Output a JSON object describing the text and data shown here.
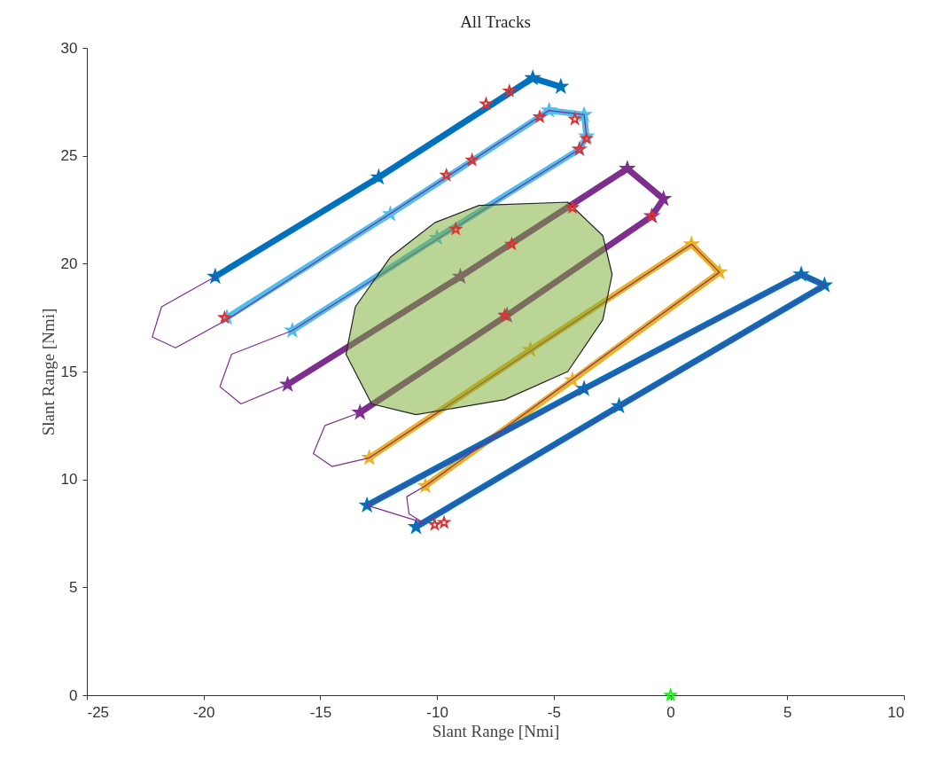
{
  "chart_data": {
    "type": "line",
    "title": "All Tracks",
    "xlabel": "Slant Range [Nmi]",
    "ylabel": "Slant Range [Nmi]",
    "xlim": [
      -25,
      10
    ],
    "ylim": [
      0,
      30
    ],
    "xticks": [
      -25,
      -20,
      -15,
      -10,
      -5,
      0,
      5,
      10
    ],
    "yticks": [
      0,
      5,
      10,
      15,
      20,
      25,
      30
    ],
    "grid": false,
    "series": [
      {
        "color": "#0072bd",
        "marker": "star",
        "x": [
          -19.5,
          -12.5,
          -5.9,
          -4.7
        ],
        "values": [
          19.4,
          24.0,
          28.6,
          28.2
        ]
      },
      {
        "color": "#4dbeee",
        "marker": "star",
        "x": [
          -19.0,
          -12.0,
          -5.2,
          -3.7,
          -3.6,
          -3.9,
          -10.0,
          -16.2
        ],
        "values": [
          17.5,
          22.3,
          27.1,
          26.9,
          25.9,
          25.3,
          21.2,
          16.9
        ]
      },
      {
        "color": "#7e2f8e",
        "marker": "star",
        "x": [
          -16.4,
          -9.0,
          -1.85,
          -0.3,
          -0.8,
          -7.0,
          -13.3
        ],
        "values": [
          14.4,
          19.4,
          24.4,
          23.0,
          22.2,
          17.6,
          13.1
        ]
      },
      {
        "color": "#edb120",
        "marker": "star",
        "x": [
          -12.9,
          -6.0,
          0.9,
          2.1,
          -4.2,
          -10.5
        ],
        "values": [
          11.0,
          16.0,
          20.9,
          19.6,
          14.6,
          9.7
        ]
      },
      {
        "color": "#0072bd",
        "marker": "star",
        "x": [
          -13.0,
          -3.7,
          5.6,
          6.6,
          -2.2,
          -10.9
        ],
        "values": [
          8.8,
          14.2,
          19.5,
          19.0,
          13.4,
          7.8
        ]
      },
      {
        "color": "#7e2f8e",
        "marker": "none",
        "x": [
          -19.5,
          -21.8,
          -22.2,
          -21.2,
          -19.0,
          -5.2,
          -3.7,
          -3.6,
          -3.9,
          -16.2,
          -18.8,
          -19.3,
          -18.4,
          -16.4,
          -1.85,
          -0.3,
          -0.8,
          -13.3,
          -14.8,
          -15.3,
          -14.5,
          -12.9,
          0.9,
          2.1,
          -10.5,
          -11.3,
          -11.2,
          -10.6,
          -13.0,
          5.6,
          6.6,
          -10.9
        ],
        "values": [
          19.4,
          18.0,
          16.6,
          16.1,
          17.4,
          27.1,
          26.9,
          25.9,
          25.3,
          16.9,
          15.8,
          14.3,
          13.5,
          14.4,
          24.4,
          23.0,
          22.2,
          13.1,
          12.5,
          11.2,
          10.6,
          11.0,
          20.9,
          19.6,
          9.7,
          9.2,
          8.4,
          8.0,
          8.8,
          19.5,
          19.0,
          7.8
        ]
      },
      {
        "type": "area",
        "color": "#77ac30",
        "x": [
          -8.2,
          -4.4,
          -2.9,
          -2.5,
          -2.9,
          -4.4,
          -7.1,
          -10.9,
          -12.8,
          -13.9,
          -13.5,
          -12.0,
          -10.1,
          -8.2
        ],
        "values": [
          22.7,
          22.85,
          21.3,
          19.5,
          17.4,
          15.0,
          13.7,
          13.0,
          13.5,
          15.8,
          18.0,
          20.3,
          21.9,
          22.7
        ]
      },
      {
        "type": "scatter",
        "color": "#e03030",
        "marker": "star",
        "x": [
          -7.9,
          -6.9,
          -5.6,
          -4.1,
          -3.6,
          -3.9,
          -8.5,
          -9.6,
          -19.1,
          -9.2,
          -6.8,
          -7.1,
          -4.2,
          -0.8,
          -10.1,
          -9.7
        ],
        "values": [
          27.4,
          28.0,
          26.8,
          26.7,
          25.8,
          25.3,
          24.8,
          24.1,
          17.5,
          21.6,
          20.9,
          17.6,
          22.6,
          22.2,
          7.9,
          8.0
        ]
      },
      {
        "type": "scatter",
        "color": "#00ff00",
        "marker": "star",
        "x": [
          0
        ],
        "values": [
          0
        ]
      }
    ]
  }
}
